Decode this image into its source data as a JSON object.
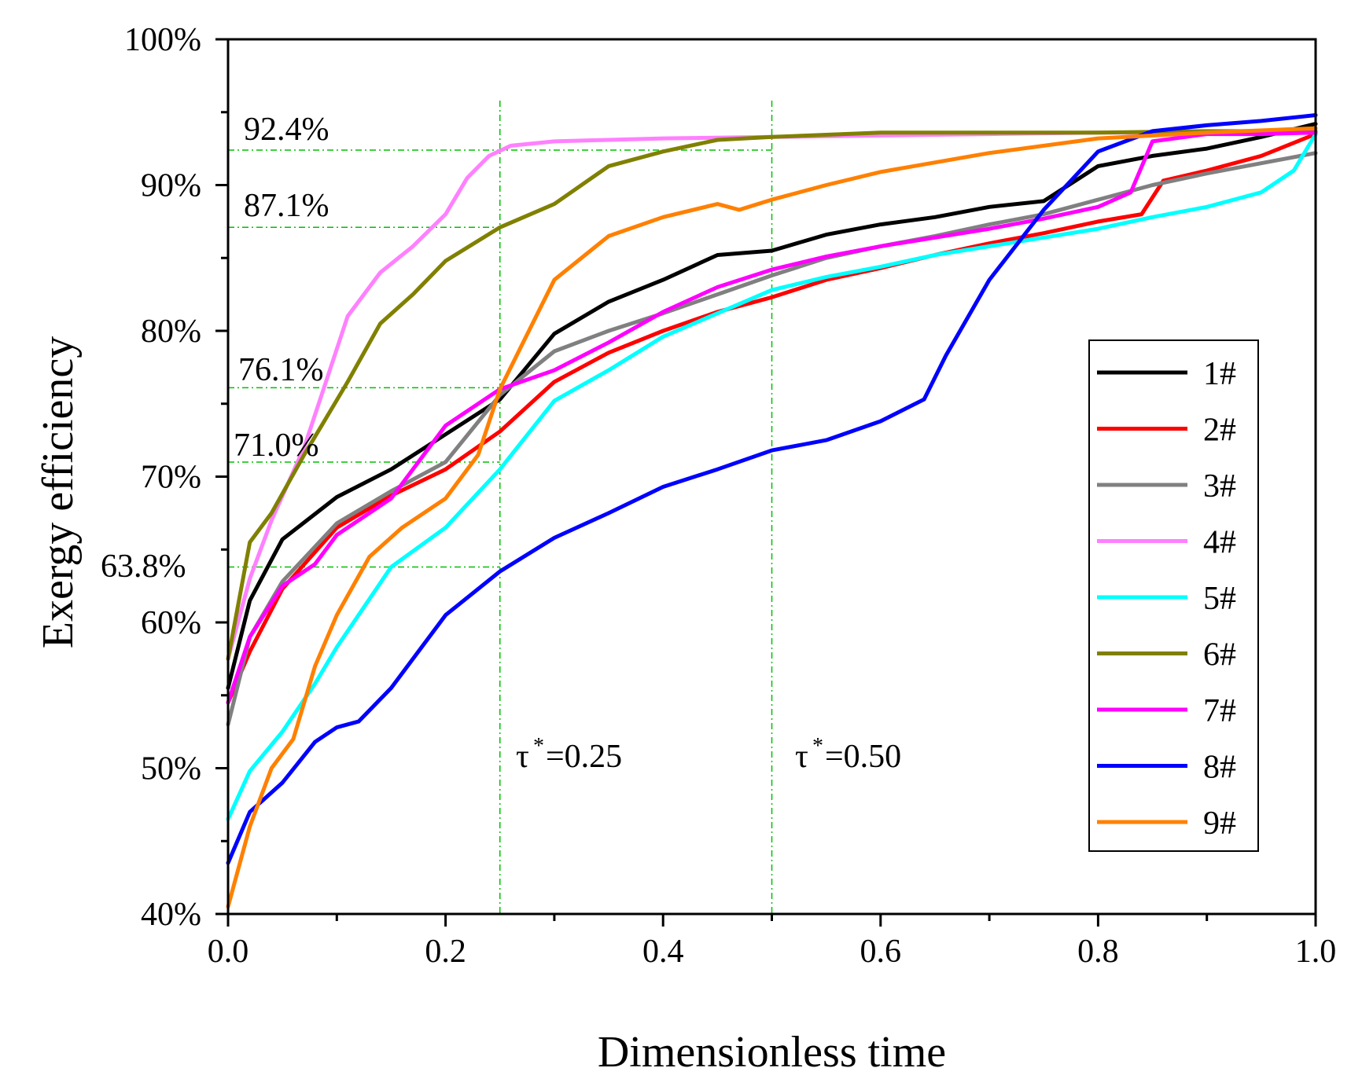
{
  "chart_data": {
    "type": "line",
    "title": "",
    "xlabel": "Dimensionless time",
    "ylabel": "Exergy efficiency",
    "xlim": [
      0.0,
      1.0
    ],
    "ylim": [
      40,
      100
    ],
    "x_ticks": [
      {
        "value": 0.0,
        "label": "0.0"
      },
      {
        "value": 0.2,
        "label": "0.2"
      },
      {
        "value": 0.4,
        "label": "0.4"
      },
      {
        "value": 0.6,
        "label": "0.6"
      },
      {
        "value": 0.8,
        "label": "0.8"
      },
      {
        "value": 1.0,
        "label": "1.0"
      }
    ],
    "y_ticks": [
      {
        "value": 40,
        "label": "40%"
      },
      {
        "value": 50,
        "label": "50%"
      },
      {
        "value": 60,
        "label": "60%"
      },
      {
        "value": 70,
        "label": "70%"
      },
      {
        "value": 80,
        "label": "80%"
      },
      {
        "value": 90,
        "label": "90%"
      },
      {
        "value": 100,
        "label": "100%"
      }
    ],
    "grid": false,
    "legend_position": "right",
    "vlines": [
      {
        "x": 0.25,
        "label": "τ",
        "superscript": "*",
        "suffix": "=0.25"
      },
      {
        "x": 0.5,
        "label": "τ",
        "superscript": "*",
        "suffix": "=0.50"
      }
    ],
    "hlines": [
      {
        "y": 92.4,
        "label": "92.4%"
      },
      {
        "y": 87.1,
        "label": "87.1%"
      },
      {
        "y": 76.1,
        "label": "76.1%"
      },
      {
        "y": 71.0,
        "label": "71.0%"
      },
      {
        "y": 63.8,
        "label": "63.8%"
      }
    ],
    "series": [
      {
        "name": "1#",
        "color": "#000000",
        "x": [
          0,
          0.02,
          0.05,
          0.1,
          0.15,
          0.2,
          0.25,
          0.3,
          0.35,
          0.4,
          0.45,
          0.5,
          0.55,
          0.6,
          0.65,
          0.7,
          0.75,
          0.8,
          0.85,
          0.9,
          0.95,
          1.0
        ],
        "y": [
          55.5,
          61.5,
          65.7,
          68.6,
          70.5,
          72.9,
          75.3,
          79.8,
          82.0,
          83.5,
          85.2,
          85.5,
          86.6,
          87.3,
          87.8,
          88.5,
          88.9,
          91.3,
          92.0,
          92.5,
          93.3,
          94.2
        ]
      },
      {
        "name": "2#",
        "color": "#ff0000",
        "x": [
          0,
          0.02,
          0.05,
          0.1,
          0.15,
          0.2,
          0.25,
          0.3,
          0.35,
          0.4,
          0.45,
          0.5,
          0.55,
          0.6,
          0.65,
          0.7,
          0.75,
          0.8,
          0.84,
          0.86,
          0.9,
          0.95,
          1.0
        ],
        "y": [
          54.5,
          58.0,
          62.3,
          66.5,
          68.7,
          70.5,
          73.1,
          76.5,
          78.5,
          80.0,
          81.3,
          82.3,
          83.5,
          84.3,
          85.2,
          86.0,
          86.7,
          87.5,
          88.0,
          90.3,
          91.0,
          92.0,
          93.5
        ]
      },
      {
        "name": "3#",
        "color": "#808080",
        "x": [
          0,
          0.02,
          0.05,
          0.1,
          0.15,
          0.2,
          0.25,
          0.3,
          0.35,
          0.4,
          0.45,
          0.5,
          0.55,
          0.6,
          0.65,
          0.7,
          0.75,
          0.8,
          0.85,
          0.9,
          0.95,
          1.0
        ],
        "y": [
          53.0,
          59.0,
          62.8,
          66.8,
          69.0,
          71.0,
          75.6,
          78.6,
          80.0,
          81.2,
          82.5,
          83.8,
          85.0,
          85.8,
          86.5,
          87.3,
          88.0,
          89.0,
          90.0,
          90.8,
          91.5,
          92.2
        ]
      },
      {
        "name": "4#",
        "color": "#ff80ff",
        "x": [
          0,
          0.02,
          0.04,
          0.07,
          0.09,
          0.11,
          0.14,
          0.17,
          0.2,
          0.22,
          0.24,
          0.26,
          0.3,
          0.35,
          0.4,
          0.5,
          0.6,
          0.7,
          0.8,
          0.9,
          1.0
        ],
        "y": [
          57.5,
          63.0,
          67.0,
          72.0,
          76.5,
          81.0,
          84.0,
          85.8,
          88.0,
          90.5,
          92.0,
          92.7,
          93.0,
          93.1,
          93.2,
          93.3,
          93.4,
          93.5,
          93.6,
          93.6,
          93.7
        ]
      },
      {
        "name": "5#",
        "color": "#00ffff",
        "x": [
          0,
          0.02,
          0.05,
          0.08,
          0.1,
          0.15,
          0.2,
          0.25,
          0.3,
          0.35,
          0.4,
          0.45,
          0.5,
          0.55,
          0.6,
          0.65,
          0.7,
          0.75,
          0.8,
          0.85,
          0.9,
          0.95,
          0.98,
          1.0
        ],
        "y": [
          46.5,
          49.8,
          52.5,
          55.8,
          58.3,
          63.8,
          66.5,
          70.5,
          75.2,
          77.3,
          79.6,
          81.2,
          82.8,
          83.7,
          84.4,
          85.2,
          85.8,
          86.4,
          87.0,
          87.8,
          88.5,
          89.5,
          91.0,
          93.5
        ]
      },
      {
        "name": "6#",
        "color": "#808000",
        "x": [
          0,
          0.02,
          0.04,
          0.07,
          0.09,
          0.11,
          0.14,
          0.17,
          0.2,
          0.25,
          0.3,
          0.35,
          0.4,
          0.45,
          0.5,
          0.6,
          0.7,
          0.8,
          0.9,
          1.0
        ],
        "y": [
          57.5,
          65.5,
          67.5,
          71.5,
          74.0,
          76.5,
          80.5,
          82.5,
          84.8,
          87.1,
          88.7,
          91.3,
          92.3,
          93.1,
          93.3,
          93.6,
          93.6,
          93.6,
          93.7,
          93.7
        ]
      },
      {
        "name": "7#",
        "color": "#ff00ff",
        "x": [
          0,
          0.02,
          0.05,
          0.08,
          0.1,
          0.15,
          0.2,
          0.25,
          0.3,
          0.35,
          0.4,
          0.45,
          0.5,
          0.55,
          0.6,
          0.65,
          0.7,
          0.75,
          0.8,
          0.83,
          0.85,
          0.9,
          0.95,
          1.0
        ],
        "y": [
          54.5,
          59.0,
          62.5,
          64.0,
          66.0,
          68.5,
          73.5,
          76.0,
          77.3,
          79.2,
          81.3,
          83.0,
          84.2,
          85.1,
          85.8,
          86.4,
          87.0,
          87.7,
          88.5,
          89.5,
          93.0,
          93.5,
          93.5,
          93.6
        ]
      },
      {
        "name": "8#",
        "color": "#0000ff",
        "x": [
          0,
          0.02,
          0.05,
          0.08,
          0.1,
          0.12,
          0.15,
          0.2,
          0.25,
          0.3,
          0.35,
          0.4,
          0.45,
          0.5,
          0.55,
          0.6,
          0.64,
          0.66,
          0.7,
          0.75,
          0.8,
          0.85,
          0.9,
          0.95,
          1.0
        ],
        "y": [
          43.5,
          47.0,
          49.0,
          51.8,
          52.8,
          53.2,
          55.5,
          60.5,
          63.5,
          65.8,
          67.5,
          69.3,
          70.5,
          71.8,
          72.5,
          73.8,
          75.3,
          78.3,
          83.5,
          88.3,
          92.3,
          93.7,
          94.1,
          94.4,
          94.8
        ]
      },
      {
        "name": "9#",
        "color": "#ff8000",
        "x": [
          0,
          0.02,
          0.04,
          0.06,
          0.08,
          0.1,
          0.13,
          0.16,
          0.2,
          0.23,
          0.25,
          0.27,
          0.3,
          0.35,
          0.4,
          0.45,
          0.47,
          0.5,
          0.55,
          0.6,
          0.7,
          0.8,
          0.9,
          1.0
        ],
        "y": [
          40.5,
          46.0,
          50.0,
          52.0,
          57.0,
          60.5,
          64.5,
          66.5,
          68.5,
          71.5,
          76.0,
          79.0,
          83.5,
          86.5,
          87.8,
          88.7,
          88.3,
          89.0,
          90.0,
          90.9,
          92.2,
          93.2,
          93.6,
          93.9
        ]
      }
    ]
  }
}
